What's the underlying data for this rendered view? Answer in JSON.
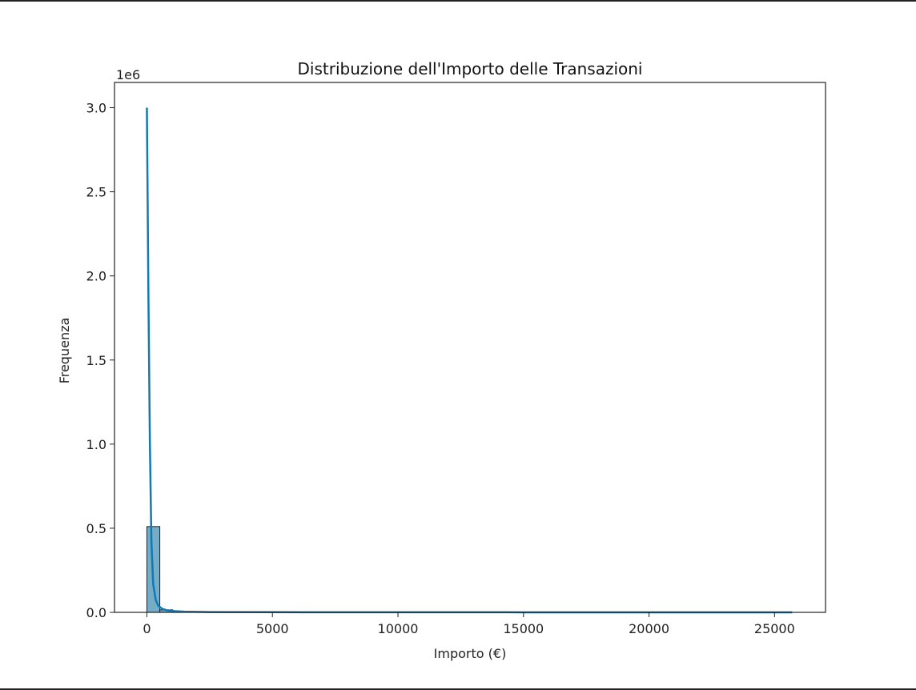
{
  "chart_data": {
    "type": "bar",
    "title": "Distribuzione dell'Importo delle Transazioni",
    "xlabel": "Importo (€)",
    "ylabel": "Frequenza",
    "y_offset_label": "1e6",
    "xlim": [
      -1290,
      27030
    ],
    "ylim": [
      0,
      3150000
    ],
    "xticks": [
      0,
      5000,
      10000,
      15000,
      20000,
      25000
    ],
    "xtick_labels": [
      "0",
      "5000",
      "10000",
      "15000",
      "20000",
      "25000"
    ],
    "yticks": [
      0,
      500000,
      1000000,
      1500000,
      2000000,
      2500000,
      3000000
    ],
    "ytick_labels": [
      "0.0",
      "0.5",
      "1.0",
      "1.5",
      "2.0",
      "2.5",
      "3.0"
    ],
    "bins": [
      {
        "x0": 0,
        "x1": 515,
        "count": 510000
      },
      {
        "x0": 515,
        "x1": 1030,
        "count": 15000
      },
      {
        "x0": 1030,
        "x1": 1545,
        "count": 3000
      }
    ],
    "kde_curve": {
      "x": [
        0,
        60,
        120,
        180,
        250,
        350,
        450,
        600,
        800,
        1100,
        1500,
        2500,
        5000,
        10000,
        15000,
        20000,
        25700
      ],
      "y": [
        3000000,
        1900000,
        1000000,
        420000,
        170000,
        75000,
        40000,
        22000,
        12000,
        7000,
        4000,
        2000,
        1000,
        500,
        300,
        200,
        100
      ]
    },
    "colors": {
      "bar_fill": "#5f9dbd",
      "bar_edge": "#1f1f1f",
      "kde_line": "#0f7ab4"
    },
    "grid": false,
    "legend": "none"
  }
}
